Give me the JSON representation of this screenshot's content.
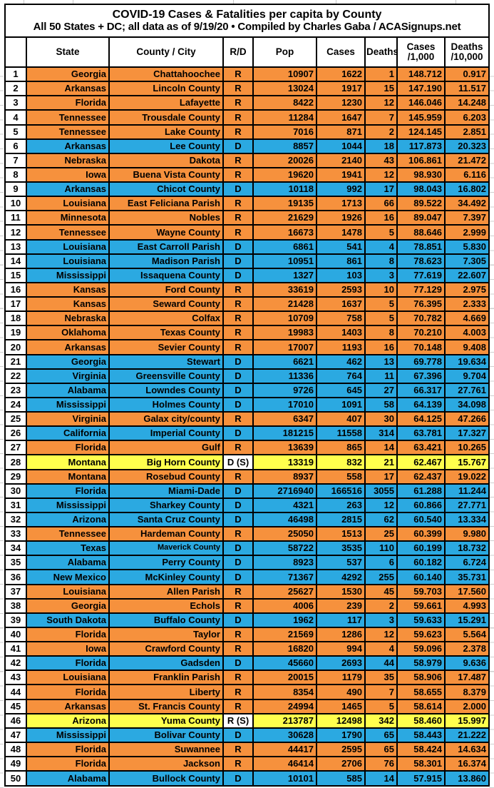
{
  "title": "COVID-19 Cases & Fatalities per capita by County",
  "subtitle": "All 50 States + DC; all data as of 9/19/20 • Compiled by Charles Gaba / ACASignups.net",
  "colors": {
    "republican_row": "#F6913D",
    "democrat_row": "#2BA9E1",
    "special_row": "#FFFF4D",
    "rank_column_bg": "#FFFFFF",
    "border": "#000000",
    "text": "#000000"
  },
  "chart_data": {
    "type": "table",
    "title": "COVID-19 Cases & Fatalities per capita by County",
    "subtitle": "All 50 States + DC; all data as of 9/19/20 • Compiled by Charles Gaba / ACASignups.net",
    "row_color_coding": {
      "R": "orange",
      "D": "blue",
      "S": "yellow"
    },
    "columns": [
      {
        "key": "rank",
        "label": ""
      },
      {
        "key": "state",
        "label": "State"
      },
      {
        "key": "county",
        "label": "County / City"
      },
      {
        "key": "rd",
        "label": "R/D"
      },
      {
        "key": "pop",
        "label": "Pop"
      },
      {
        "key": "cases",
        "label": "Cases"
      },
      {
        "key": "deaths",
        "label": "Deaths"
      },
      {
        "key": "cases_per_1000",
        "label": "Cases",
        "label2": "/1,000"
      },
      {
        "key": "deaths_per_10000",
        "label": "Deaths",
        "label2": "/10,000"
      }
    ],
    "rows": [
      {
        "rank": "1",
        "state": "Georgia",
        "county": "Chattahoochee",
        "rd": "R",
        "pop": "10907",
        "cases": "1622",
        "deaths": "1",
        "cases_per_1000": "148.712",
        "deaths_per_10000": "0.917",
        "party": "R"
      },
      {
        "rank": "2",
        "state": "Arkansas",
        "county": "Lincoln County",
        "rd": "R",
        "pop": "13024",
        "cases": "1917",
        "deaths": "15",
        "cases_per_1000": "147.190",
        "deaths_per_10000": "11.517",
        "party": "R"
      },
      {
        "rank": "3",
        "state": "Florida",
        "county": "Lafayette",
        "rd": "R",
        "pop": "8422",
        "cases": "1230",
        "deaths": "12",
        "cases_per_1000": "146.046",
        "deaths_per_10000": "14.248",
        "party": "R"
      },
      {
        "rank": "4",
        "state": "Tennessee",
        "county": "Trousdale County",
        "rd": "R",
        "pop": "11284",
        "cases": "1647",
        "deaths": "7",
        "cases_per_1000": "145.959",
        "deaths_per_10000": "6.203",
        "party": "R"
      },
      {
        "rank": "5",
        "state": "Tennessee",
        "county": "Lake County",
        "rd": "R",
        "pop": "7016",
        "cases": "871",
        "deaths": "2",
        "cases_per_1000": "124.145",
        "deaths_per_10000": "2.851",
        "party": "R"
      },
      {
        "rank": "6",
        "state": "Arkansas",
        "county": "Lee County",
        "rd": "D",
        "pop": "8857",
        "cases": "1044",
        "deaths": "18",
        "cases_per_1000": "117.873",
        "deaths_per_10000": "20.323",
        "party": "D"
      },
      {
        "rank": "7",
        "state": "Nebraska",
        "county": "Dakota",
        "rd": "R",
        "pop": "20026",
        "cases": "2140",
        "deaths": "43",
        "cases_per_1000": "106.861",
        "deaths_per_10000": "21.472",
        "party": "R"
      },
      {
        "rank": "8",
        "state": "Iowa",
        "county": "Buena Vista County",
        "rd": "R",
        "pop": "19620",
        "cases": "1941",
        "deaths": "12",
        "cases_per_1000": "98.930",
        "deaths_per_10000": "6.116",
        "party": "R"
      },
      {
        "rank": "9",
        "state": "Arkansas",
        "county": "Chicot County",
        "rd": "D",
        "pop": "10118",
        "cases": "992",
        "deaths": "17",
        "cases_per_1000": "98.043",
        "deaths_per_10000": "16.802",
        "party": "D"
      },
      {
        "rank": "10",
        "state": "Louisiana",
        "county": "East Feliciana Parish",
        "rd": "R",
        "pop": "19135",
        "cases": "1713",
        "deaths": "66",
        "cases_per_1000": "89.522",
        "deaths_per_10000": "34.492",
        "party": "R"
      },
      {
        "rank": "11",
        "state": "Minnesota",
        "county": "Nobles",
        "rd": "R",
        "pop": "21629",
        "cases": "1926",
        "deaths": "16",
        "cases_per_1000": "89.047",
        "deaths_per_10000": "7.397",
        "party": "R"
      },
      {
        "rank": "12",
        "state": "Tennessee",
        "county": "Wayne County",
        "rd": "R",
        "pop": "16673",
        "cases": "1478",
        "deaths": "5",
        "cases_per_1000": "88.646",
        "deaths_per_10000": "2.999",
        "party": "R"
      },
      {
        "rank": "13",
        "state": "Louisiana",
        "county": "East Carroll Parish",
        "rd": "D",
        "pop": "6861",
        "cases": "541",
        "deaths": "4",
        "cases_per_1000": "78.851",
        "deaths_per_10000": "5.830",
        "party": "D"
      },
      {
        "rank": "14",
        "state": "Louisiana",
        "county": "Madison Parish",
        "rd": "D",
        "pop": "10951",
        "cases": "861",
        "deaths": "8",
        "cases_per_1000": "78.623",
        "deaths_per_10000": "7.305",
        "party": "D"
      },
      {
        "rank": "15",
        "state": "Mississippi",
        "county": "Issaquena County",
        "rd": "D",
        "pop": "1327",
        "cases": "103",
        "deaths": "3",
        "cases_per_1000": "77.619",
        "deaths_per_10000": "22.607",
        "party": "D"
      },
      {
        "rank": "16",
        "state": "Kansas",
        "county": "Ford County",
        "rd": "R",
        "pop": "33619",
        "cases": "2593",
        "deaths": "10",
        "cases_per_1000": "77.129",
        "deaths_per_10000": "2.975",
        "party": "R"
      },
      {
        "rank": "17",
        "state": "Kansas",
        "county": "Seward County",
        "rd": "R",
        "pop": "21428",
        "cases": "1637",
        "deaths": "5",
        "cases_per_1000": "76.395",
        "deaths_per_10000": "2.333",
        "party": "R"
      },
      {
        "rank": "18",
        "state": "Nebraska",
        "county": "Colfax",
        "rd": "R",
        "pop": "10709",
        "cases": "758",
        "deaths": "5",
        "cases_per_1000": "70.782",
        "deaths_per_10000": "4.669",
        "party": "R"
      },
      {
        "rank": "19",
        "state": "Oklahoma",
        "county": "Texas County",
        "rd": "R",
        "pop": "19983",
        "cases": "1403",
        "deaths": "8",
        "cases_per_1000": "70.210",
        "deaths_per_10000": "4.003",
        "party": "R"
      },
      {
        "rank": "20",
        "state": "Arkansas",
        "county": "Sevier County",
        "rd": "R",
        "pop": "17007",
        "cases": "1193",
        "deaths": "16",
        "cases_per_1000": "70.148",
        "deaths_per_10000": "9.408",
        "party": "R"
      },
      {
        "rank": "21",
        "state": "Georgia",
        "county": "Stewart",
        "rd": "D",
        "pop": "6621",
        "cases": "462",
        "deaths": "13",
        "cases_per_1000": "69.778",
        "deaths_per_10000": "19.634",
        "party": "D"
      },
      {
        "rank": "22",
        "state": "Virginia",
        "county": "Greensville County",
        "rd": "D",
        "pop": "11336",
        "cases": "764",
        "deaths": "11",
        "cases_per_1000": "67.396",
        "deaths_per_10000": "9.704",
        "party": "D"
      },
      {
        "rank": "23",
        "state": "Alabama",
        "county": "Lowndes County",
        "rd": "D",
        "pop": "9726",
        "cases": "645",
        "deaths": "27",
        "cases_per_1000": "66.317",
        "deaths_per_10000": "27.761",
        "party": "D"
      },
      {
        "rank": "24",
        "state": "Mississippi",
        "county": "Holmes County",
        "rd": "D",
        "pop": "17010",
        "cases": "1091",
        "deaths": "58",
        "cases_per_1000": "64.139",
        "deaths_per_10000": "34.098",
        "party": "D"
      },
      {
        "rank": "25",
        "state": "Virginia",
        "county": "Galax city/county",
        "rd": "R",
        "pop": "6347",
        "cases": "407",
        "deaths": "30",
        "cases_per_1000": "64.125",
        "deaths_per_10000": "47.266",
        "party": "R"
      },
      {
        "rank": "26",
        "state": "California",
        "county": "Imperial County",
        "rd": "D",
        "pop": "181215",
        "cases": "11558",
        "deaths": "314",
        "cases_per_1000": "63.781",
        "deaths_per_10000": "17.327",
        "party": "D"
      },
      {
        "rank": "27",
        "state": "Florida",
        "county": "Gulf",
        "rd": "R",
        "pop": "13639",
        "cases": "865",
        "deaths": "14",
        "cases_per_1000": "63.421",
        "deaths_per_10000": "10.265",
        "party": "R"
      },
      {
        "rank": "28",
        "state": "Montana",
        "county": "Big Horn County",
        "rd": "D (S)",
        "pop": "13319",
        "cases": "832",
        "deaths": "21",
        "cases_per_1000": "62.467",
        "deaths_per_10000": "15.767",
        "party": "S"
      },
      {
        "rank": "29",
        "state": "Montana",
        "county": "Rosebud County",
        "rd": "R",
        "pop": "8937",
        "cases": "558",
        "deaths": "17",
        "cases_per_1000": "62.437",
        "deaths_per_10000": "19.022",
        "party": "R"
      },
      {
        "rank": "30",
        "state": "Florida",
        "county": "Miami-Dade",
        "rd": "D",
        "pop": "2716940",
        "cases": "166516",
        "deaths": "3055",
        "cases_per_1000": "61.288",
        "deaths_per_10000": "11.244",
        "party": "D"
      },
      {
        "rank": "31",
        "state": "Mississippi",
        "county": "Sharkey County",
        "rd": "D",
        "pop": "4321",
        "cases": "263",
        "deaths": "12",
        "cases_per_1000": "60.866",
        "deaths_per_10000": "27.771",
        "party": "D"
      },
      {
        "rank": "32",
        "state": "Arizona",
        "county": "Santa Cruz County",
        "rd": "D",
        "pop": "46498",
        "cases": "2815",
        "deaths": "62",
        "cases_per_1000": "60.540",
        "deaths_per_10000": "13.334",
        "party": "D"
      },
      {
        "rank": "33",
        "state": "Tennessee",
        "county": "Hardeman County",
        "rd": "R",
        "pop": "25050",
        "cases": "1513",
        "deaths": "25",
        "cases_per_1000": "60.399",
        "deaths_per_10000": "9.980",
        "party": "R"
      },
      {
        "rank": "34",
        "state": "Texas",
        "county": "Maverick County",
        "rd": "D",
        "pop": "58722",
        "cases": "3535",
        "deaths": "110",
        "cases_per_1000": "60.199",
        "deaths_per_10000": "18.732",
        "party": "D",
        "county_small": true
      },
      {
        "rank": "35",
        "state": "Alabama",
        "county": "Perry County",
        "rd": "D",
        "pop": "8923",
        "cases": "537",
        "deaths": "6",
        "cases_per_1000": "60.182",
        "deaths_per_10000": "6.724",
        "party": "D"
      },
      {
        "rank": "36",
        "state": "New Mexico",
        "county": "McKinley County",
        "rd": "D",
        "pop": "71367",
        "cases": "4292",
        "deaths": "255",
        "cases_per_1000": "60.140",
        "deaths_per_10000": "35.731",
        "party": "D"
      },
      {
        "rank": "37",
        "state": "Louisiana",
        "county": "Allen Parish",
        "rd": "R",
        "pop": "25627",
        "cases": "1530",
        "deaths": "45",
        "cases_per_1000": "59.703",
        "deaths_per_10000": "17.560",
        "party": "R"
      },
      {
        "rank": "38",
        "state": "Georgia",
        "county": "Echols",
        "rd": "R",
        "pop": "4006",
        "cases": "239",
        "deaths": "2",
        "cases_per_1000": "59.661",
        "deaths_per_10000": "4.993",
        "party": "R"
      },
      {
        "rank": "39",
        "state": "South Dakota",
        "county": "Buffalo County",
        "rd": "D",
        "pop": "1962",
        "cases": "117",
        "deaths": "3",
        "cases_per_1000": "59.633",
        "deaths_per_10000": "15.291",
        "party": "D"
      },
      {
        "rank": "40",
        "state": "Florida",
        "county": "Taylor",
        "rd": "R",
        "pop": "21569",
        "cases": "1286",
        "deaths": "12",
        "cases_per_1000": "59.623",
        "deaths_per_10000": "5.564",
        "party": "R"
      },
      {
        "rank": "41",
        "state": "Iowa",
        "county": "Crawford County",
        "rd": "R",
        "pop": "16820",
        "cases": "994",
        "deaths": "4",
        "cases_per_1000": "59.096",
        "deaths_per_10000": "2.378",
        "party": "R"
      },
      {
        "rank": "42",
        "state": "Florida",
        "county": "Gadsden",
        "rd": "D",
        "pop": "45660",
        "cases": "2693",
        "deaths": "44",
        "cases_per_1000": "58.979",
        "deaths_per_10000": "9.636",
        "party": "D"
      },
      {
        "rank": "43",
        "state": "Louisiana",
        "county": "Franklin Parish",
        "rd": "R",
        "pop": "20015",
        "cases": "1179",
        "deaths": "35",
        "cases_per_1000": "58.906",
        "deaths_per_10000": "17.487",
        "party": "R"
      },
      {
        "rank": "44",
        "state": "Florida",
        "county": "Liberty",
        "rd": "R",
        "pop": "8354",
        "cases": "490",
        "deaths": "7",
        "cases_per_1000": "58.655",
        "deaths_per_10000": "8.379",
        "party": "R"
      },
      {
        "rank": "45",
        "state": "Arkansas",
        "county": "St. Francis County",
        "rd": "R",
        "pop": "24994",
        "cases": "1465",
        "deaths": "5",
        "cases_per_1000": "58.614",
        "deaths_per_10000": "2.000",
        "party": "R"
      },
      {
        "rank": "46",
        "state": "Arizona",
        "county": "Yuma County",
        "rd": "R (S)",
        "pop": "213787",
        "cases": "12498",
        "deaths": "342",
        "cases_per_1000": "58.460",
        "deaths_per_10000": "15.997",
        "party": "S"
      },
      {
        "rank": "47",
        "state": "Mississippi",
        "county": "Bolivar County",
        "rd": "D",
        "pop": "30628",
        "cases": "1790",
        "deaths": "65",
        "cases_per_1000": "58.443",
        "deaths_per_10000": "21.222",
        "party": "D"
      },
      {
        "rank": "48",
        "state": "Florida",
        "county": "Suwannee",
        "rd": "R",
        "pop": "44417",
        "cases": "2595",
        "deaths": "65",
        "cases_per_1000": "58.424",
        "deaths_per_10000": "14.634",
        "party": "R"
      },
      {
        "rank": "49",
        "state": "Florida",
        "county": "Jackson",
        "rd": "R",
        "pop": "46414",
        "cases": "2706",
        "deaths": "76",
        "cases_per_1000": "58.301",
        "deaths_per_10000": "16.374",
        "party": "R"
      },
      {
        "rank": "50",
        "state": "Alabama",
        "county": "Bullock County",
        "rd": "D",
        "pop": "10101",
        "cases": "585",
        "deaths": "14",
        "cases_per_1000": "57.915",
        "deaths_per_10000": "13.860",
        "party": "D"
      }
    ]
  }
}
